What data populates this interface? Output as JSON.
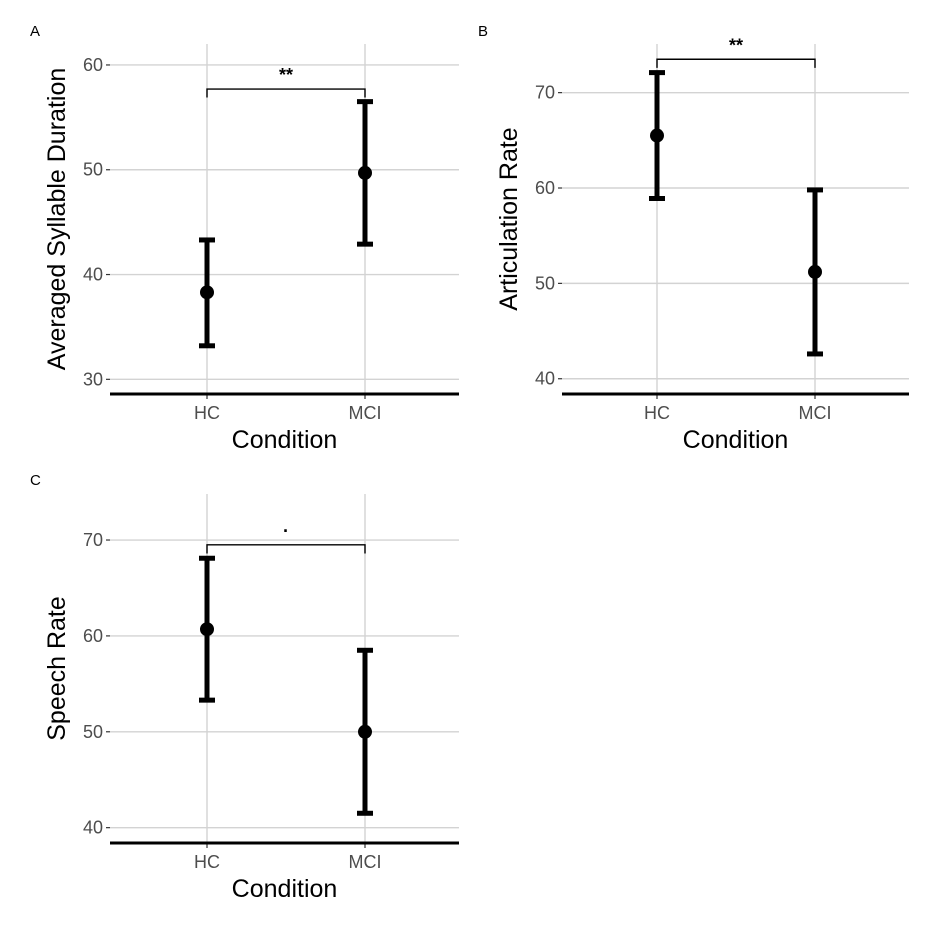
{
  "chart_data": [
    {
      "type": "scatter",
      "panel_label": "A",
      "xlabel": "Condition",
      "ylabel": "Averaged Syllable Duration",
      "categories": [
        "HC",
        "MCI"
      ],
      "points": [
        {
          "category": "HC",
          "mean": 38.3,
          "lower": 33.2,
          "upper": 43.3
        },
        {
          "category": "MCI",
          "mean": 49.7,
          "lower": 42.9,
          "upper": 56.5
        }
      ],
      "ylim": [
        28.6,
        62.0
      ],
      "yticks": [
        30,
        40,
        50,
        60
      ],
      "significance": {
        "label": "**",
        "y": 57.7,
        "tick": 0.8
      },
      "grid": true
    },
    {
      "type": "scatter",
      "panel_label": "B",
      "xlabel": "Condition",
      "ylabel": "Articulation Rate",
      "categories": [
        "HC",
        "MCI"
      ],
      "points": [
        {
          "category": "HC",
          "mean": 65.5,
          "lower": 58.9,
          "upper": 72.1
        },
        {
          "category": "MCI",
          "mean": 51.2,
          "lower": 42.6,
          "upper": 59.8
        }
      ],
      "ylim": [
        38.4,
        75.1
      ],
      "yticks": [
        40,
        50,
        60,
        70
      ],
      "significance": {
        "label": "**",
        "y": 73.5,
        "tick": 0.9
      },
      "grid": true
    },
    {
      "type": "scatter",
      "panel_label": "C",
      "xlabel": "Condition",
      "ylabel": "Speech Rate",
      "categories": [
        "HC",
        "MCI"
      ],
      "points": [
        {
          "category": "HC",
          "mean": 60.7,
          "lower": 53.3,
          "upper": 68.1
        },
        {
          "category": "MCI",
          "mean": 50.0,
          "lower": 41.5,
          "upper": 58.5
        }
      ],
      "ylim": [
        38.4,
        74.8
      ],
      "yticks": [
        40,
        50,
        60,
        70
      ],
      "significance": {
        "label": "·",
        "y": 69.5,
        "tick": 0.9
      },
      "grid": true
    }
  ]
}
